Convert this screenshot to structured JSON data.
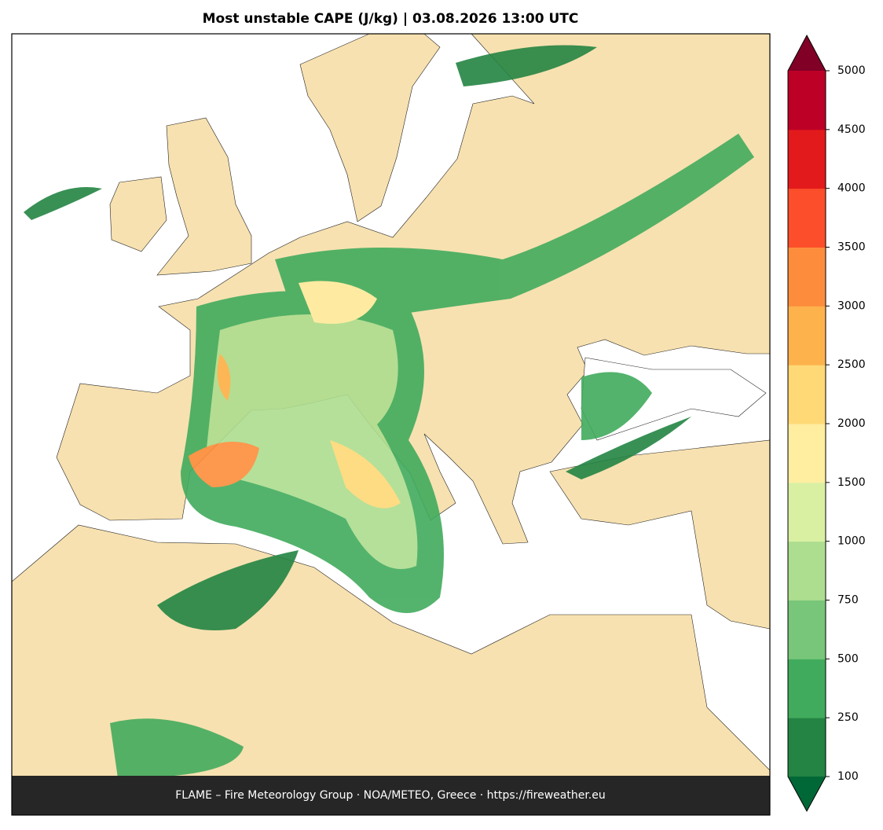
{
  "title": "Most unstable CAPE (J/kg)  |  03.08.2026 13:00 UTC",
  "footer": "FLAME – Fire Meteorology Group · NOA/METEO, Greece · https://fireweather.eu",
  "colorbar": {
    "ticks": [
      100,
      250,
      500,
      750,
      1000,
      1500,
      2000,
      2500,
      3000,
      3500,
      4000,
      4500,
      5000
    ],
    "colors": [
      "#238443",
      "#41ab5d",
      "#78c679",
      "#addd8e",
      "#d9f0a3",
      "#ffeda0",
      "#fed976",
      "#feb24c",
      "#fd8d3c",
      "#fc4e2a",
      "#e31a1c",
      "#bd0026"
    ],
    "under_color": "#006837",
    "over_color": "#800026"
  }
}
